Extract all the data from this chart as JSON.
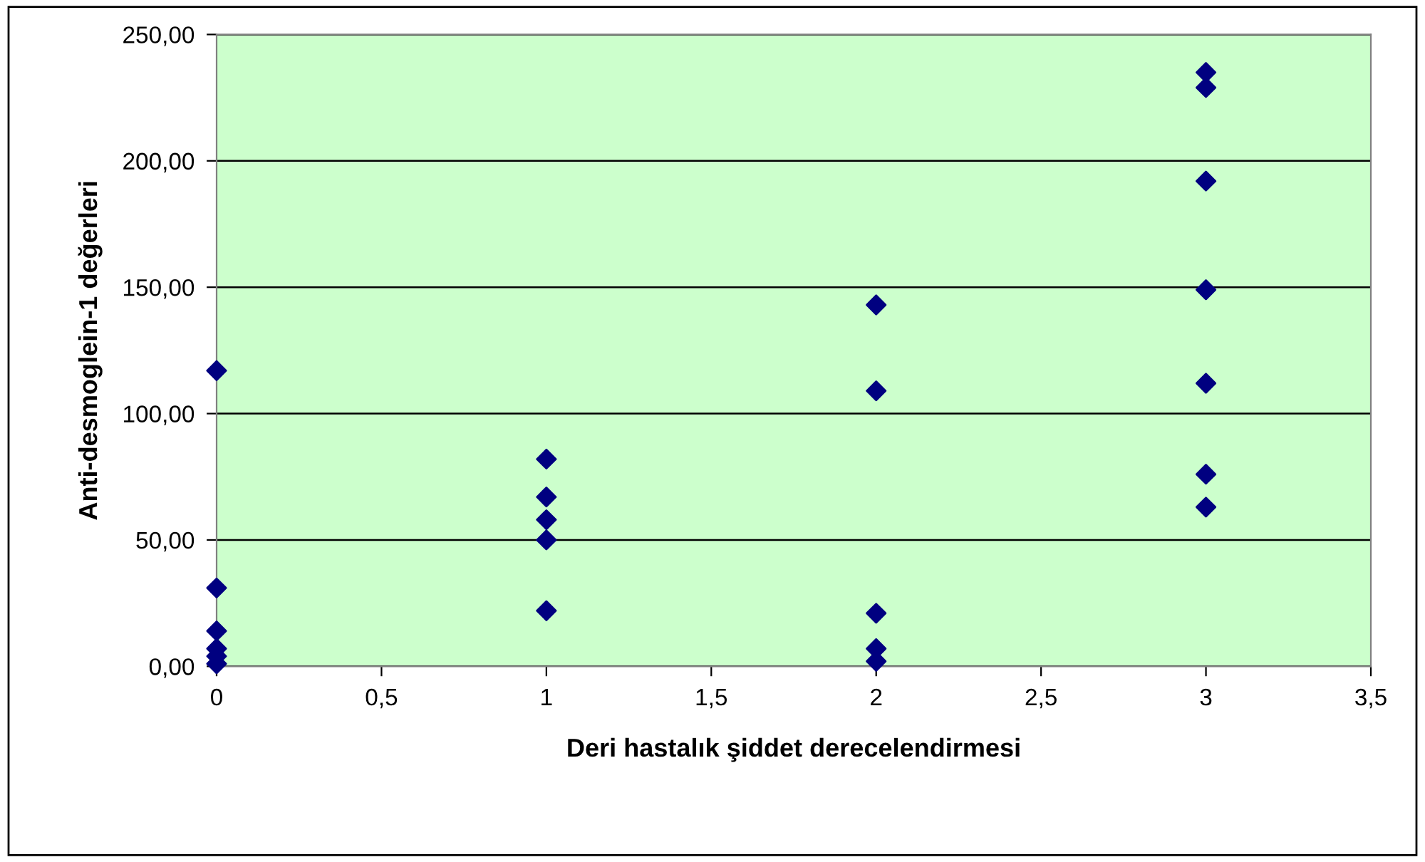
{
  "chart_data": {
    "type": "scatter",
    "xlabel": "Deri hastalık şiddet derecelendirmesi",
    "ylabel": "Anti-desmoglein-1 değerleri",
    "series": [
      {
        "color": "#000080",
        "x": [
          0,
          0,
          0,
          0,
          0,
          0,
          1,
          1,
          1,
          1,
          1,
          2,
          2,
          2,
          2,
          2,
          3,
          3,
          3,
          3,
          3,
          3,
          3
        ],
        "values": [
          117,
          31,
          14,
          7,
          4,
          1,
          82,
          67,
          58,
          50,
          22,
          143,
          109,
          21,
          7,
          2,
          235,
          229,
          192,
          149,
          112,
          76,
          63
        ]
      }
    ],
    "marker": "diamond",
    "grid": "y",
    "legend": false,
    "xlim": [
      0,
      3.5
    ],
    "xticks": [
      0,
      {
        "value": 0.5,
        "label": "0,5"
      },
      1,
      {
        "value": 1.5,
        "label": "1,5"
      },
      2,
      {
        "value": 2.5,
        "label": "2,5"
      },
      3,
      {
        "value": 3.5,
        "label": "3,5"
      }
    ],
    "ylim": [
      0,
      250
    ],
    "yticks": [
      {
        "value": 0,
        "label": "0,00"
      },
      {
        "value": 50,
        "label": "50,00"
      },
      {
        "value": 100,
        "label": "100,00"
      },
      {
        "value": 150,
        "label": "150,00"
      },
      {
        "value": 200,
        "label": "200,00"
      },
      {
        "value": 250,
        "label": "250,00"
      }
    ]
  }
}
